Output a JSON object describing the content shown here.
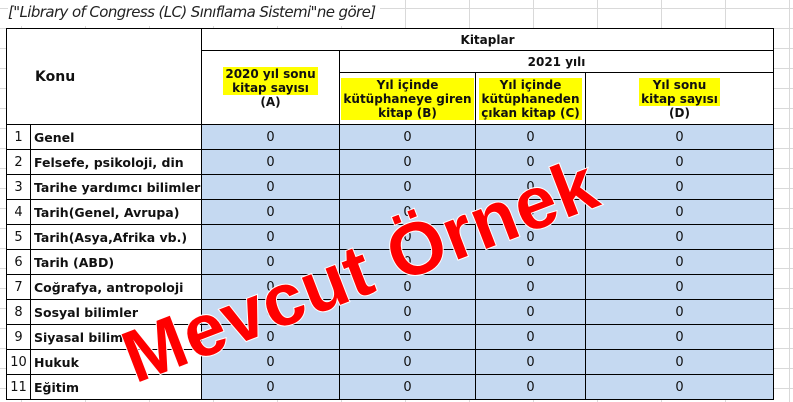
{
  "note": "[\"Library of Congress (LC) Sınıflama Sistemi\"ne göre]",
  "header": {
    "konu": "Konu",
    "kitaplar": "Kitaplar",
    "year": "2021 yılı",
    "col_a": [
      "2020 yıl sonu",
      "kitap sayısı",
      "(A)"
    ],
    "col_b": [
      "Yıl içinde",
      "kütüphaneye giren",
      "kitap (B)"
    ],
    "col_c": [
      "Yıl içinde",
      "kütüphaneden",
      "çıkan kitap (C)"
    ],
    "col_d": [
      "Yıl sonu",
      "kitap sayısı",
      "(D)"
    ]
  },
  "rows": [
    {
      "n": "1",
      "konu": "Genel",
      "a": "0",
      "b": "0",
      "c": "0",
      "d": "0"
    },
    {
      "n": "2",
      "konu": "Felsefe, psikoloji, din",
      "a": "0",
      "b": "0",
      "c": "0",
      "d": "0"
    },
    {
      "n": "3",
      "konu": "Tarihe yardımcı bilimler",
      "a": "0",
      "b": "0",
      "c": "0",
      "d": "0"
    },
    {
      "n": "4",
      "konu": "Tarih(Genel, Avrupa)",
      "a": "0",
      "b": "0",
      "c": "0",
      "d": "0"
    },
    {
      "n": "5",
      "konu": "Tarih(Asya,Afrika vb.)",
      "a": "0",
      "b": "0",
      "c": "0",
      "d": "0"
    },
    {
      "n": "6",
      "konu": "Tarih (ABD)",
      "a": "0",
      "b": "0",
      "c": "0",
      "d": "0"
    },
    {
      "n": "7",
      "konu": "Coğrafya, antropoloji",
      "a": "0",
      "b": "0",
      "c": "0",
      "d": "0"
    },
    {
      "n": "8",
      "konu": "Sosyal bilimler",
      "a": "0",
      "b": "0",
      "c": "0",
      "d": "0"
    },
    {
      "n": "9",
      "konu": "Siyasal bilim",
      "a": "0",
      "b": "0",
      "c": "0",
      "d": "0"
    },
    {
      "n": "10",
      "konu": "Hukuk",
      "a": "0",
      "b": "0",
      "c": "0",
      "d": "0"
    },
    {
      "n": "11",
      "konu": "Eğitim",
      "a": "0",
      "b": "0",
      "c": "0",
      "d": "0"
    }
  ],
  "watermark": "Mevcut Örnek",
  "colors": {
    "value_fill": "#c5d9f1",
    "highlight": "#ffff00",
    "watermark": "#ff0000"
  }
}
